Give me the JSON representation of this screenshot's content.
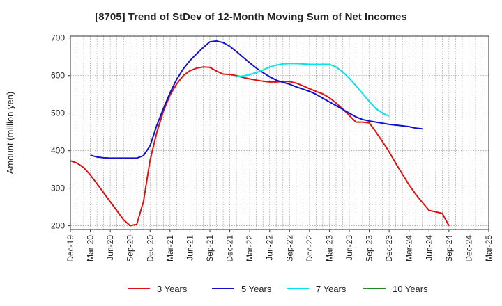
{
  "chart_data": {
    "type": "line",
    "title": "[8705]  Trend of StDev of 12-Month Moving Sum of Net Incomes",
    "xlabel": "",
    "ylabel": "Amount (million yen)",
    "ylim": [
      190,
      705
    ],
    "yticks": [
      200,
      300,
      400,
      500,
      600,
      700
    ],
    "x_tick_labels": [
      "Dec-19",
      "Mar-20",
      "Jun-20",
      "Sep-20",
      "Dec-20",
      "Mar-21",
      "Jun-21",
      "Sep-21",
      "Dec-21",
      "Mar-22",
      "Jun-22",
      "Sep-22",
      "Dec-22",
      "Mar-23",
      "Jun-23",
      "Sep-23",
      "Dec-23",
      "Mar-24",
      "Jun-24",
      "Sep-24",
      "Dec-24",
      "Mar-25"
    ],
    "grid": true,
    "legend_position": "bottom",
    "series": [
      {
        "name": "3 Years",
        "color": "#dd1111",
        "start_index": 0,
        "values": [
          373,
          367,
          355,
          335,
          312,
          288,
          264,
          240,
          216,
          200,
          204,
          265,
          375,
          448,
          505,
          548,
          578,
          600,
          613,
          620,
          623,
          622,
          612,
          604,
          603,
          600,
          595,
          591,
          588,
          585,
          583,
          583,
          584,
          584,
          580,
          573,
          565,
          558,
          551,
          541,
          527,
          511,
          494,
          476,
          476,
          474,
          450,
          424,
          397,
          366,
          337,
          309,
          284,
          262,
          241,
          237,
          233,
          200
        ]
      },
      {
        "name": "5 Years",
        "color": "#1111cc",
        "start_index": 3,
        "values": [
          388,
          383,
          381,
          380,
          380,
          380,
          380,
          380,
          387,
          413,
          467,
          512,
          554,
          590,
          618,
          640,
          658,
          675,
          690,
          692,
          688,
          678,
          664,
          649,
          634,
          620,
          608,
          597,
          588,
          582,
          577,
          570,
          564,
          558,
          550,
          540,
          530,
          520,
          510,
          500,
          490,
          483,
          479,
          476,
          473,
          470,
          468,
          466,
          464,
          460,
          458
        ]
      },
      {
        "name": "7 Years",
        "color": "#00e5ee",
        "start_index": 25,
        "values": [
          597,
          599,
          603,
          608,
          615,
          623,
          628,
          631,
          632,
          632,
          631,
          630,
          630,
          630,
          630,
          623,
          610,
          593,
          573,
          552,
          531,
          512,
          500,
          492
        ]
      },
      {
        "name": "10 Years",
        "color": "#228822",
        "start_index": 0,
        "values": []
      }
    ]
  }
}
